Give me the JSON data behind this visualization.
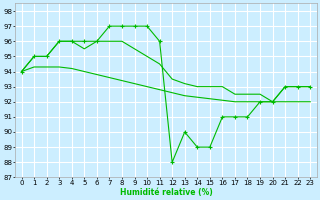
{
  "xlabel": "Humidité relative (%)",
  "bg_color": "#cceeff",
  "grid_color": "#ffffff",
  "line_color": "#00bb00",
  "xlim": [
    -0.5,
    23.5
  ],
  "ylim": [
    87,
    98.5
  ],
  "yticks": [
    87,
    88,
    89,
    90,
    91,
    92,
    93,
    94,
    95,
    96,
    97,
    98
  ],
  "xticks": [
    0,
    1,
    2,
    3,
    4,
    5,
    6,
    7,
    8,
    9,
    10,
    11,
    12,
    13,
    14,
    15,
    16,
    17,
    18,
    19,
    20,
    21,
    22,
    23
  ],
  "series1_x": [
    0,
    1,
    2,
    3,
    4,
    5,
    6,
    7,
    8,
    9,
    10,
    11,
    12,
    13,
    14,
    15,
    16,
    17,
    18,
    19,
    20,
    21,
    22,
    23
  ],
  "series1_y": [
    94,
    95,
    95,
    96,
    96,
    96,
    96,
    97,
    97,
    97,
    97,
    96,
    88,
    90,
    89,
    89,
    91,
    91,
    91,
    92,
    92,
    93,
    93,
    93
  ],
  "series2_x": [
    0,
    1,
    2,
    3,
    4,
    5,
    6,
    7,
    8,
    9,
    10,
    11,
    12,
    13,
    14,
    15,
    16,
    17,
    18,
    19,
    20,
    21,
    22,
    23
  ],
  "series2_y": [
    94,
    95,
    95,
    96,
    96,
    95.5,
    96,
    96,
    96,
    95.5,
    95,
    94.5,
    93.5,
    93.2,
    93,
    93,
    93,
    92.5,
    92.5,
    92.5,
    92,
    93,
    93,
    93
  ],
  "series3_x": [
    0,
    1,
    2,
    3,
    4,
    5,
    6,
    7,
    8,
    9,
    10,
    11,
    12,
    13,
    14,
    15,
    16,
    17,
    18,
    19,
    20,
    21,
    22,
    23
  ],
  "series3_y": [
    94,
    94.3,
    94.3,
    94.3,
    94.2,
    94.0,
    93.8,
    93.6,
    93.4,
    93.2,
    93.0,
    92.8,
    92.6,
    92.4,
    92.3,
    92.2,
    92.1,
    92.0,
    92.0,
    92.0,
    92.0,
    92.0,
    92.0,
    92.0
  ],
  "tick_fontsize": 5,
  "xlabel_fontsize": 5.5
}
